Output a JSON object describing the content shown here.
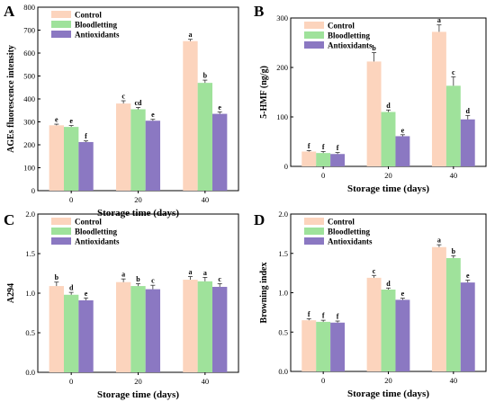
{
  "colors": {
    "Control": "#fcd4bd",
    "Bloodletting": "#9fe29b",
    "Antioxidants": "#8b78c2",
    "axis": "#000000"
  },
  "chart_data": [
    {
      "panel": "A",
      "type": "bar",
      "xlabel": "Storage time (days)",
      "ylabel": "AGEs fluorescence intensity",
      "categories": [
        "0",
        "20",
        "40"
      ],
      "ylim": [
        0,
        800
      ],
      "yticks": [
        "0",
        "100",
        "200",
        "300",
        "400",
        "500",
        "600",
        "700",
        "800"
      ],
      "legend": "top-left",
      "series": [
        {
          "name": "Control",
          "values": [
            285,
            380,
            652
          ],
          "errors": [
            5,
            12,
            8
          ],
          "letters": [
            "e",
            "c",
            "a"
          ]
        },
        {
          "name": "Bloodletting",
          "values": [
            278,
            355,
            470
          ],
          "errors": [
            6,
            8,
            12
          ],
          "letters": [
            "e",
            "cd",
            "b"
          ]
        },
        {
          "name": "Antioxidants",
          "values": [
            212,
            305,
            335
          ],
          "errors": [
            5,
            6,
            8
          ],
          "letters": [
            "f",
            "e",
            "e"
          ]
        }
      ]
    },
    {
      "panel": "B",
      "type": "bar",
      "xlabel": "Storage time (days)",
      "ylabel": "5-HMF (ng/g)",
      "categories": [
        "0",
        "20",
        "40"
      ],
      "ylim": [
        0,
        300
      ],
      "yticks": [
        "0",
        "100",
        "200",
        "300"
      ],
      "legend": "top-left",
      "series": [
        {
          "name": "Control",
          "values": [
            30,
            212,
            272
          ],
          "errors": [
            2,
            18,
            14
          ],
          "letters": [
            "f",
            "b",
            "a"
          ]
        },
        {
          "name": "Bloodletting",
          "values": [
            27,
            110,
            163
          ],
          "errors": [
            3,
            4,
            18
          ],
          "letters": [
            "f",
            "d",
            "c"
          ]
        },
        {
          "name": "Antioxidants",
          "values": [
            25,
            61,
            95
          ],
          "errors": [
            3,
            3,
            8
          ],
          "letters": [
            "f",
            "e",
            "d"
          ]
        }
      ]
    },
    {
      "panel": "C",
      "type": "bar",
      "xlabel": "Storage time (days)",
      "ylabel": "A294",
      "categories": [
        "0",
        "20",
        "40"
      ],
      "ylim": [
        0,
        2.0
      ],
      "yticks": [
        "0.0",
        "0.5",
        "1.0",
        "1.5",
        "2.0"
      ],
      "legend": "top-left",
      "series": [
        {
          "name": "Control",
          "values": [
            1.09,
            1.14,
            1.17
          ],
          "errors": [
            0.05,
            0.04,
            0.04
          ],
          "letters": [
            "b",
            "a",
            "a"
          ]
        },
        {
          "name": "Bloodletting",
          "values": [
            0.98,
            1.09,
            1.15
          ],
          "errors": [
            0.03,
            0.03,
            0.05
          ],
          "letters": [
            "d",
            "b",
            "a"
          ]
        },
        {
          "name": "Antioxidants",
          "values": [
            0.91,
            1.05,
            1.08
          ],
          "errors": [
            0.03,
            0.05,
            0.04
          ],
          "letters": [
            "e",
            "c",
            "c"
          ]
        }
      ]
    },
    {
      "panel": "D",
      "type": "bar",
      "xlabel": "Storage time (days)",
      "ylabel": "Browning index",
      "categories": [
        "0",
        "20",
        "40"
      ],
      "ylim": [
        0,
        2.0
      ],
      "yticks": [
        "0.0",
        "0.5",
        "1.0",
        "1.5",
        "2.0"
      ],
      "legend": "top-left",
      "series": [
        {
          "name": "Control",
          "values": [
            0.65,
            1.19,
            1.58
          ],
          "errors": [
            0.02,
            0.03,
            0.03
          ],
          "letters": [
            "f",
            "c",
            "a"
          ]
        },
        {
          "name": "Bloodletting",
          "values": [
            0.63,
            1.04,
            1.44
          ],
          "errors": [
            0.02,
            0.02,
            0.03
          ],
          "letters": [
            "f",
            "d",
            "b"
          ]
        },
        {
          "name": "Antioxidants",
          "values": [
            0.62,
            0.91,
            1.13
          ],
          "errors": [
            0.02,
            0.02,
            0.03
          ],
          "letters": [
            "f",
            "e",
            "e"
          ]
        }
      ]
    }
  ]
}
